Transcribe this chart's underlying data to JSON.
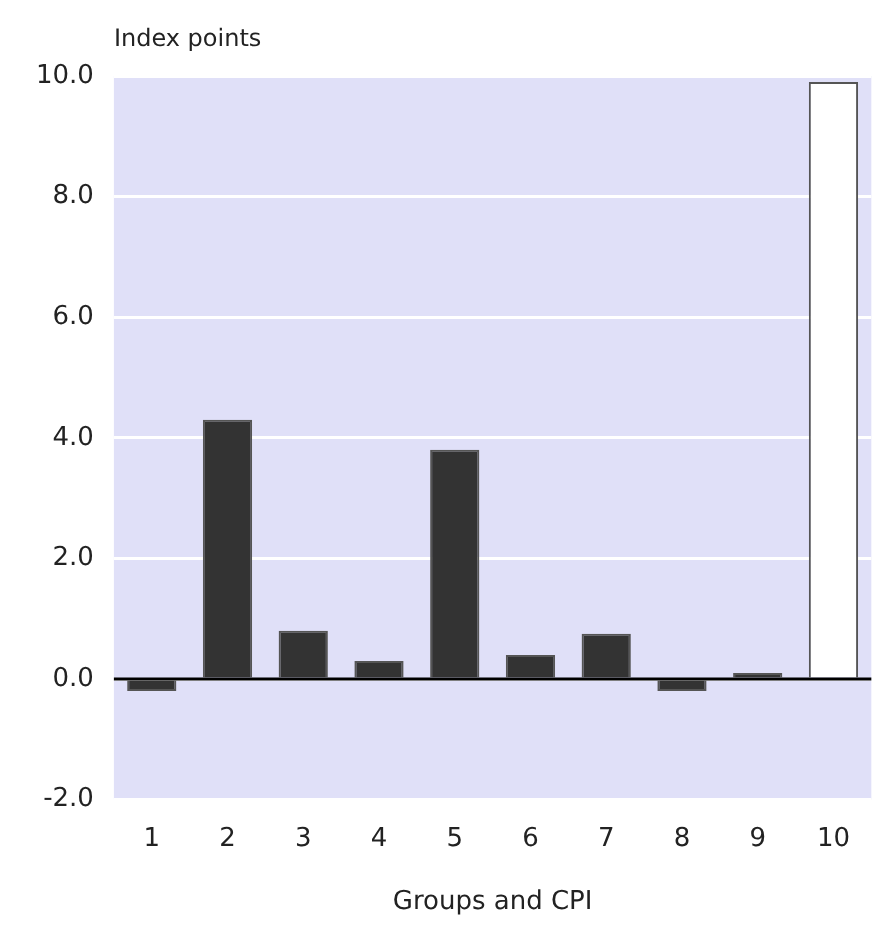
{
  "chart_data": {
    "type": "bar",
    "ylabel": "Index points",
    "xlabel": "Groups and CPI",
    "categories": [
      "1",
      "2",
      "3",
      "4",
      "5",
      "6",
      "7",
      "8",
      "9",
      "10"
    ],
    "values": [
      -0.2,
      4.3,
      0.8,
      0.3,
      3.8,
      0.4,
      0.75,
      -0.2,
      0.1,
      9.9
    ],
    "colors": [
      "#333333",
      "#333333",
      "#333333",
      "#333333",
      "#333333",
      "#333333",
      "#333333",
      "#333333",
      "#333333",
      "#ffffff"
    ],
    "ylim": [
      -2,
      10
    ],
    "yticks": [
      {
        "value": -2,
        "label": "-2.0"
      },
      {
        "value": 0,
        "label": "0.0"
      },
      {
        "value": 2,
        "label": "2.0"
      },
      {
        "value": 4,
        "label": "4.0"
      },
      {
        "value": 6,
        "label": "6.0"
      },
      {
        "value": 8,
        "label": "8.0"
      },
      {
        "value": 10,
        "label": "10.0"
      }
    ],
    "grid": "y",
    "legend": false
  }
}
